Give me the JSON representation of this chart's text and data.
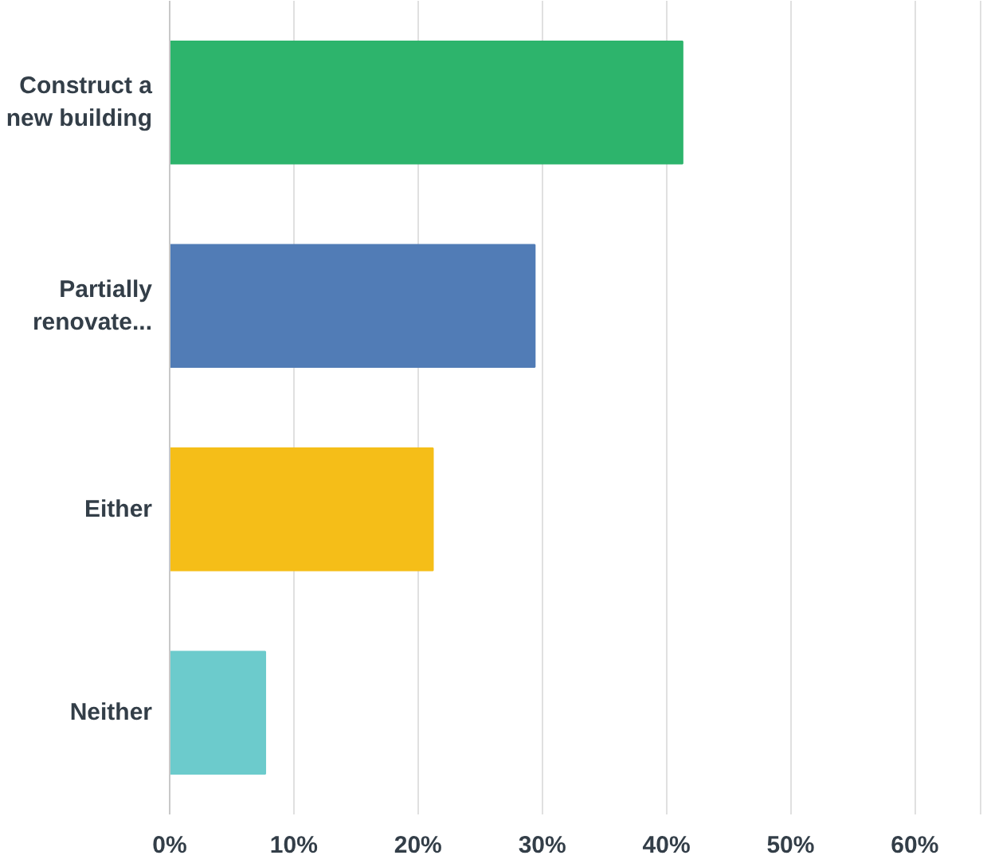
{
  "chart_data": {
    "type": "bar",
    "orientation": "horizontal",
    "categories": [
      "Construct a new building",
      "Partially renovate...",
      "Either",
      "Neither"
    ],
    "values": [
      41.3,
      29.4,
      21.2,
      7.7
    ],
    "colors": [
      "#2db46c",
      "#517cb6",
      "#f5be18",
      "#6ccbcc"
    ],
    "xlim": [
      0,
      65.3
    ],
    "xticks": [
      {
        "value": 0,
        "label": "0%"
      },
      {
        "value": 10,
        "label": "10%"
      },
      {
        "value": 20,
        "label": "20%"
      },
      {
        "value": 30,
        "label": "30%"
      },
      {
        "value": 40,
        "label": "40%"
      },
      {
        "value": 50,
        "label": "50%"
      },
      {
        "value": 60,
        "label": "60%"
      }
    ],
    "grid": "x"
  }
}
